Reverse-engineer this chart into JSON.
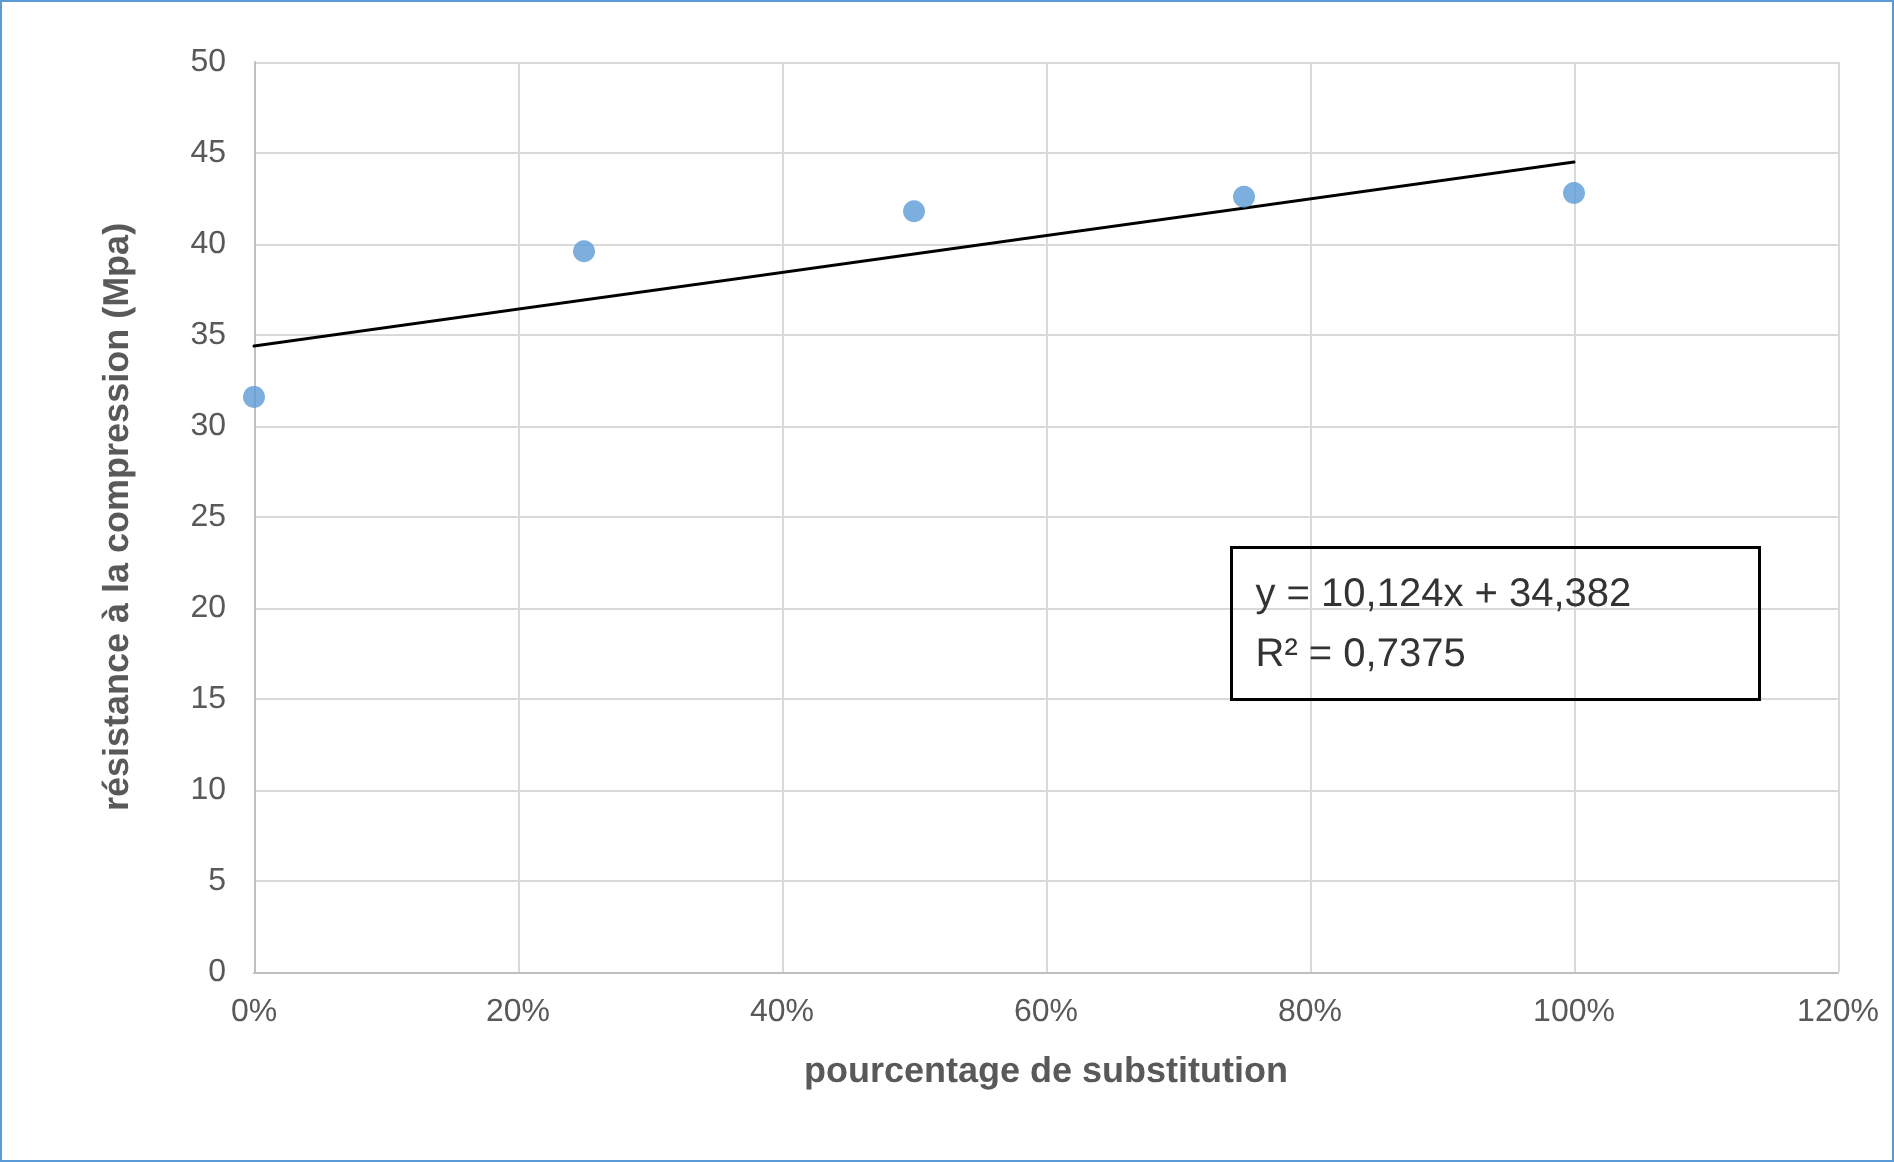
{
  "chart_data": {
    "type": "scatter",
    "xlabel": "pourcentage de substitution",
    "ylabel": "résistance à la compression (Mpa)",
    "x": [
      0,
      0.25,
      0.5,
      0.75,
      1
    ],
    "series": [
      {
        "color": "#5b9bd5",
        "marker": "circle",
        "values": [
          31.6,
          39.6,
          41.8,
          42.6,
          42.8
        ]
      },
      {
        "type": "line",
        "color": "#000000",
        "marker": "none",
        "line_style": "solid",
        "x": [
          0,
          1
        ],
        "values": [
          34.4,
          44.5
        ]
      }
    ],
    "xlim": [
      0,
      1.2
    ],
    "xticks": [
      {
        "value": 0,
        "label": "0%"
      },
      {
        "value": 0.2,
        "label": "20%"
      },
      {
        "value": 0.4,
        "label": "40%"
      },
      {
        "value": 0.6,
        "label": "60%"
      },
      {
        "value": 0.8,
        "label": "80%"
      },
      {
        "value": 1,
        "label": "100%"
      },
      {
        "value": 1.2,
        "label": "120%"
      }
    ],
    "ylim": [
      0,
      50
    ],
    "yticks": [
      0,
      5,
      10,
      15,
      20,
      25,
      30,
      35,
      40,
      45,
      50
    ],
    "grid": true,
    "annotations": [
      "y = 10,124x + 34,382\nR² = 0,7375"
    ]
  }
}
